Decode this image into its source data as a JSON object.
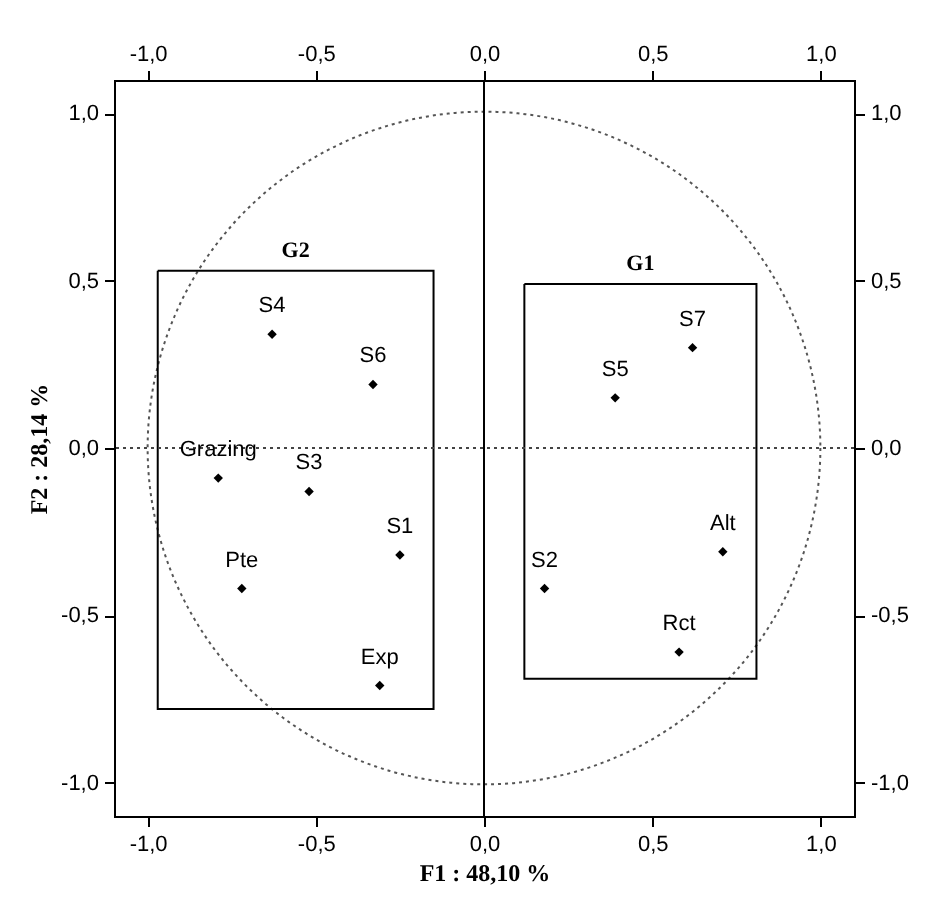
{
  "chart_data": {
    "type": "scatter",
    "xlabel": "F1 : 48,10 %",
    "ylabel": "F2 : 28,14 %",
    "xlim": [
      -1.1,
      1.1
    ],
    "ylim": [
      -1.1,
      1.1
    ],
    "x2lim": [
      -1.1,
      1.1
    ],
    "y2lim": [
      -1.1,
      1.1
    ],
    "xticks": [
      {
        "value": -1,
        "label": "-1,0"
      },
      {
        "value": -0.5,
        "label": "-0,5"
      },
      {
        "value": 0,
        "label": "0,0"
      },
      {
        "value": 0.5,
        "label": "0,5"
      },
      {
        "value": 1,
        "label": "1,0"
      }
    ],
    "yticks": [
      {
        "value": -1,
        "label": "-1,0"
      },
      {
        "value": -0.5,
        "label": "-0,5"
      },
      {
        "value": 0,
        "label": "0,0"
      },
      {
        "value": 0.5,
        "label": "0,5"
      },
      {
        "value": 1,
        "label": "1,0"
      }
    ],
    "x2ticks": [
      {
        "value": -1,
        "label": "-1,0"
      },
      {
        "value": -0.5,
        "label": "-0,5"
      },
      {
        "value": 0,
        "label": "0,0"
      },
      {
        "value": 0.5,
        "label": "0,5"
      },
      {
        "value": 1,
        "label": "1,0"
      }
    ],
    "y2ticks": [
      {
        "value": -1,
        "label": "-1,0"
      },
      {
        "value": -0.5,
        "label": "-0,5"
      },
      {
        "value": 0,
        "label": "0,0"
      },
      {
        "value": 0.5,
        "label": "0,5"
      },
      {
        "value": 1,
        "label": "1,0"
      }
    ],
    "grid": false,
    "series": [
      {
        "color": "#000000",
        "marker": "diamond",
        "x": [
          -0.63,
          -0.33,
          -0.79,
          -0.52,
          -0.25,
          -0.72,
          -0.31,
          0.62,
          0.39,
          0.71,
          0.18,
          0.58
        ],
        "values": [
          0.34,
          0.19,
          -0.09,
          -0.13,
          -0.32,
          -0.42,
          -0.71,
          0.3,
          0.15,
          -0.31,
          -0.42,
          -0.61
        ]
      }
    ],
    "ref_lines": [
      {
        "axis": "x",
        "value": 0,
        "color": "#000000",
        "line_style": "solid"
      },
      {
        "axis": "y",
        "value": 0,
        "color": "#444444",
        "line_style": "dotted"
      }
    ],
    "annotations": [
      "G2",
      "G1",
      {
        "text": "S4",
        "x": -0.63,
        "y": 0.34
      },
      {
        "text": "S6",
        "x": -0.33,
        "y": 0.19
      },
      {
        "text": "Grazing",
        "x": -0.79,
        "y": -0.09
      },
      {
        "text": "S3",
        "x": -0.52,
        "y": -0.13
      },
      {
        "text": "S1",
        "x": -0.25,
        "y": -0.32
      },
      {
        "text": "Pte",
        "x": -0.72,
        "y": -0.42
      },
      {
        "text": "Exp",
        "x": -0.31,
        "y": -0.71
      },
      {
        "text": "S7",
        "x": 0.62,
        "y": 0.3
      },
      {
        "text": "S5",
        "x": 0.39,
        "y": 0.15
      },
      {
        "text": "Alt",
        "x": 0.71,
        "y": -0.31
      },
      {
        "text": "S2",
        "x": 0.18,
        "y": -0.42
      },
      {
        "text": "Rct",
        "x": 0.58,
        "y": -0.61
      }
    ]
  }
}
